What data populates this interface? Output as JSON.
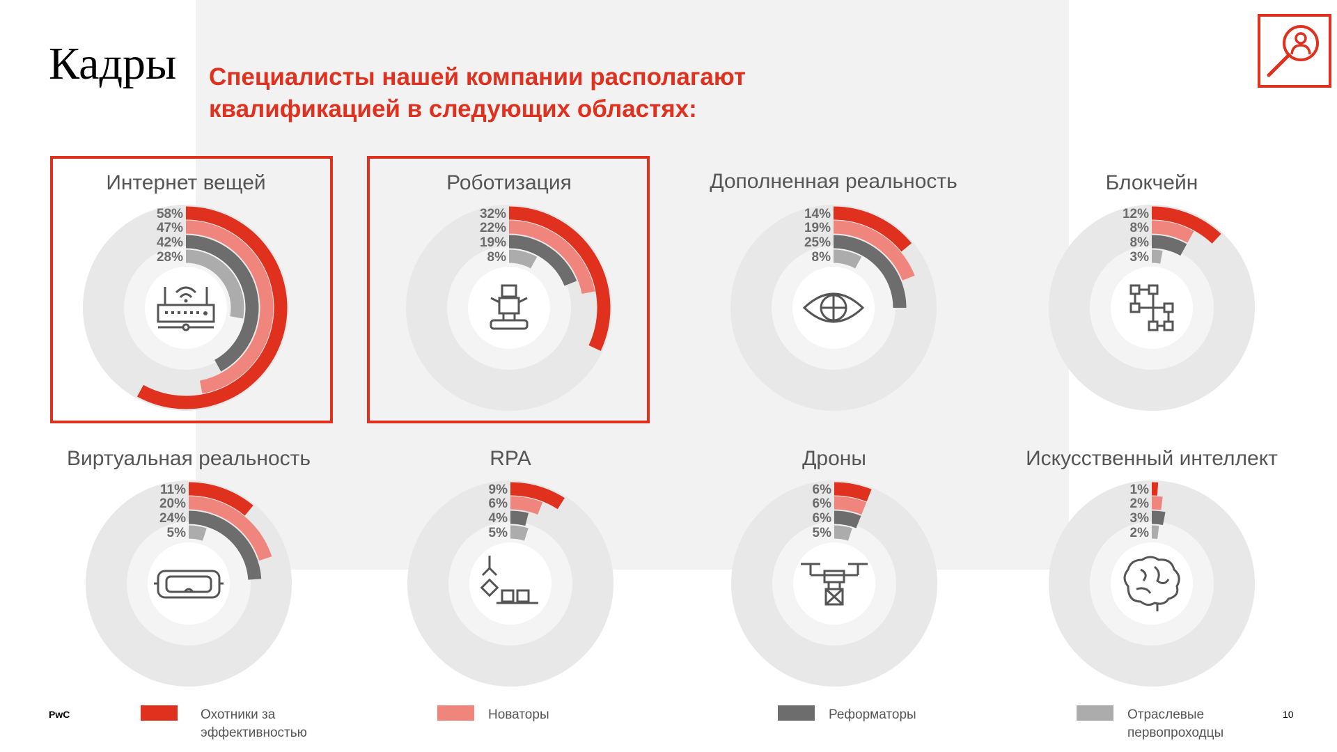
{
  "header": {
    "title": "Кадры",
    "headline_line1": "Специалисты нашей компании располагают",
    "headline_line2": "квалификацией в следующих областях:",
    "icon": "person-search-icon"
  },
  "colors": {
    "accent": "#e0301e",
    "series": [
      "#e0301e",
      "#ef857c",
      "#6d6d6d",
      "#acacac"
    ],
    "track_outer": "#e8e8e8",
    "track_inner": "#f4f4f4"
  },
  "chart_data": [
    {
      "type": "radial-bar",
      "title": "Интернет вещей",
      "highlighted": true,
      "icon": "router-icon",
      "series": [
        {
          "name": "Охотники за эффективностью",
          "value": 58
        },
        {
          "name": "Новаторы",
          "value": 47
        },
        {
          "name": "Реформаторы",
          "value": 42
        },
        {
          "name": "Отраслевые первопроходцы",
          "value": 28
        }
      ],
      "labels": [
        "58%",
        "47%",
        "42%",
        "28%"
      ]
    },
    {
      "type": "radial-bar",
      "title": "Роботизация",
      "highlighted": true,
      "icon": "robot-icon",
      "series": [
        {
          "name": "Охотники за эффективностью",
          "value": 32
        },
        {
          "name": "Новаторы",
          "value": 22
        },
        {
          "name": "Реформаторы",
          "value": 19
        },
        {
          "name": "Отраслевые первопроходцы",
          "value": 8
        }
      ],
      "labels": [
        "32%",
        "22%",
        "19%",
        "8%"
      ]
    },
    {
      "type": "radial-bar",
      "title": "Дополненная реальность",
      "highlighted": false,
      "icon": "eye-icon",
      "series": [
        {
          "name": "Охотники за эффективностью",
          "value": 14
        },
        {
          "name": "Новаторы",
          "value": 19
        },
        {
          "name": "Реформаторы",
          "value": 25
        },
        {
          "name": "Отраслевые первопроходцы",
          "value": 8
        }
      ],
      "labels": [
        "14%",
        "19%",
        "25%",
        "8%"
      ]
    },
    {
      "type": "radial-bar",
      "title": "Блокчейн",
      "highlighted": false,
      "icon": "blockchain-icon",
      "series": [
        {
          "name": "Охотники за эффективностью",
          "value": 12
        },
        {
          "name": "Новаторы",
          "value": 8
        },
        {
          "name": "Реформаторы",
          "value": 8
        },
        {
          "name": "Отраслевые первопроходцы",
          "value": 3
        }
      ],
      "labels": [
        "12%",
        "8%",
        "8%",
        "3%"
      ]
    },
    {
      "type": "radial-bar",
      "title": "Виртуальная реальность",
      "highlighted": false,
      "icon": "vr-headset-icon",
      "series": [
        {
          "name": "Охотники за эффективностью",
          "value": 11
        },
        {
          "name": "Новаторы",
          "value": 20
        },
        {
          "name": "Реформаторы",
          "value": 24
        },
        {
          "name": "Отраслевые первопроходцы",
          "value": 5
        }
      ],
      "labels": [
        "11%",
        "20%",
        "24%",
        "5%"
      ]
    },
    {
      "type": "radial-bar",
      "title": "RPA",
      "highlighted": false,
      "icon": "robotic-arm-icon",
      "series": [
        {
          "name": "Охотники за эффективностью",
          "value": 9
        },
        {
          "name": "Новаторы",
          "value": 6
        },
        {
          "name": "Реформаторы",
          "value": 4
        },
        {
          "name": "Отраслевые первопроходцы",
          "value": 5
        }
      ],
      "labels": [
        "9%",
        "6%",
        "4%",
        "5%"
      ]
    },
    {
      "type": "radial-bar",
      "title": "Дроны",
      "highlighted": false,
      "icon": "drone-icon",
      "series": [
        {
          "name": "Охотники за эффективностью",
          "value": 6
        },
        {
          "name": "Новаторы",
          "value": 6
        },
        {
          "name": "Реформаторы",
          "value": 6
        },
        {
          "name": "Отраслевые первопроходцы",
          "value": 5
        }
      ],
      "labels": [
        "6%",
        "6%",
        "6%",
        "5%"
      ]
    },
    {
      "type": "radial-bar",
      "title": "Искусственный интеллект",
      "highlighted": false,
      "icon": "brain-icon",
      "series": [
        {
          "name": "Охотники за эффективностью",
          "value": 1
        },
        {
          "name": "Новаторы",
          "value": 2
        },
        {
          "name": "Реформаторы",
          "value": 3
        },
        {
          "name": "Отраслевые первопроходцы",
          "value": 2
        }
      ],
      "labels": [
        "1%",
        "2%",
        "3%",
        "2%"
      ]
    }
  ],
  "legend": [
    {
      "label": "Охотники за эффективностью",
      "color": "#e0301e"
    },
    {
      "label": "Новаторы",
      "color": "#ef857c"
    },
    {
      "label": "Реформаторы",
      "color": "#6d6d6d"
    },
    {
      "label": "Отраслевые первопроходцы",
      "color": "#acacac"
    }
  ],
  "footer": {
    "brand": "PwC",
    "page_number": "10"
  }
}
